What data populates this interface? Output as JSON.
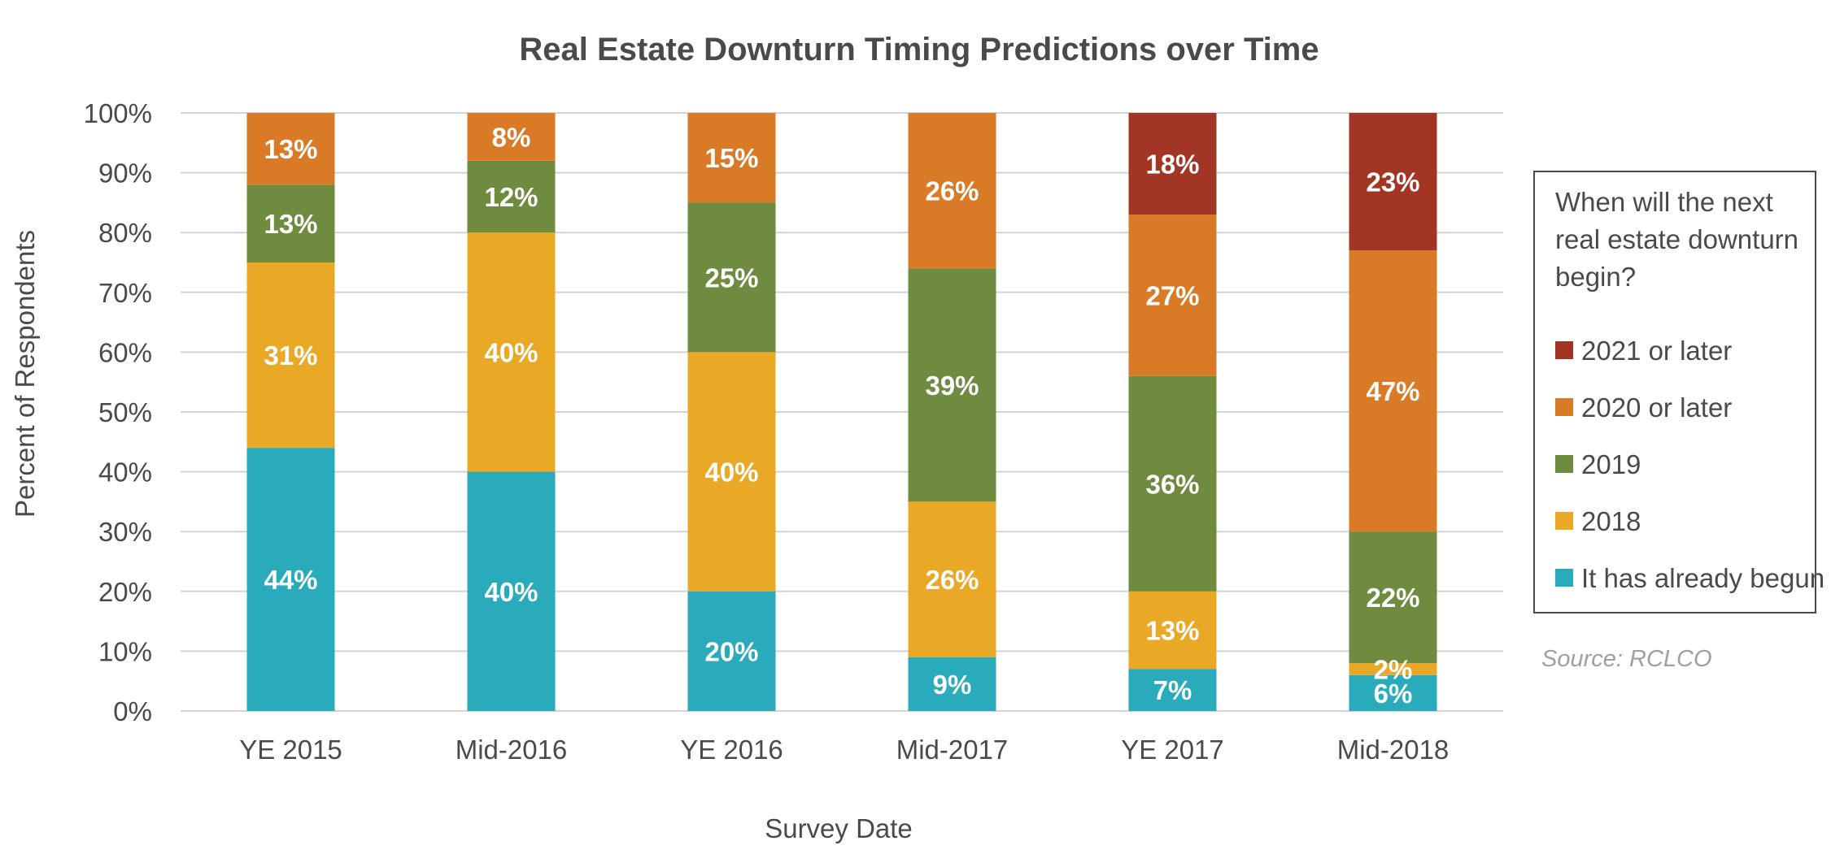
{
  "chart_data": {
    "type": "bar",
    "stacked": true,
    "title": "Real Estate Downturn Timing Predictions over Time",
    "xlabel": "Survey Date",
    "ylabel": "Percent of Respondents",
    "ylim": [
      0,
      100
    ],
    "y_ticks": [
      "0%",
      "10%",
      "20%",
      "30%",
      "40%",
      "50%",
      "60%",
      "70%",
      "80%",
      "90%",
      "100%"
    ],
    "grid": true,
    "categories": [
      "YE 2015",
      "Mid-2016",
      "YE 2016",
      "Mid-2017",
      "YE 2017",
      "Mid-2018"
    ],
    "series": [
      {
        "name": "It has already begun",
        "color": "#2aabbb",
        "values": [
          44,
          40,
          20,
          9,
          7,
          6
        ],
        "labels": [
          "44%",
          "40%",
          "20%",
          "9%",
          "7%",
          "6%"
        ]
      },
      {
        "name": "2018",
        "color": "#e9a826",
        "values": [
          31,
          40,
          40,
          26,
          13,
          2
        ],
        "labels": [
          "31%",
          "40%",
          "40%",
          "26%",
          "13%",
          "2%"
        ]
      },
      {
        "name": "2019",
        "color": "#6e8b3f",
        "values": [
          13,
          12,
          25,
          39,
          36,
          22
        ],
        "labels": [
          "13%",
          "12%",
          "25%",
          "39%",
          "36%",
          "22%"
        ]
      },
      {
        "name": "2020 or later",
        "color": "#d97b26",
        "values": [
          13,
          8,
          15,
          26,
          27,
          47
        ],
        "labels": [
          "13%",
          "8%",
          "15%",
          "26%",
          "27%",
          "47%"
        ]
      },
      {
        "name": "2021 or later",
        "color": "#a33524",
        "values": [
          0,
          0,
          0,
          0,
          18,
          23
        ],
        "labels": [
          "",
          "",
          "",
          "",
          "18%",
          "23%"
        ]
      }
    ],
    "legend": {
      "position": "right",
      "title_lines": [
        "When will the next",
        "real estate downturn",
        "begin?"
      ],
      "order": [
        "2021 or later",
        "2020 or later",
        "2019",
        "2018",
        "It has already begun"
      ]
    },
    "source": "Source: RCLCO"
  }
}
